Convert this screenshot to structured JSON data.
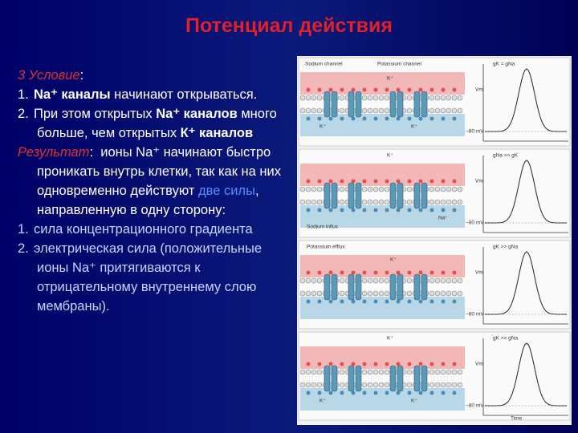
{
  "title": "Потенциал действия",
  "condition": {
    "label": "3 Условие",
    "colon": ":",
    "items": [
      {
        "marker": "1.",
        "bold": "Na⁺ каналы",
        "text": "начинают открываться."
      },
      {
        "marker": "2.",
        "text": "При этом открытых",
        "bold": "Na⁺ каналов",
        "text_2": "много больше, чем открытых",
        "bold_2": "К⁺ каналов"
      }
    ]
  },
  "result": {
    "label": "Результат",
    "colon": ":",
    "text": "ионы Na⁺ начинают быстро проникать внутрь клетки, так как на них одновременно действуют",
    "highlight": "две силы",
    "text_2": ", направленную в одну сторону:",
    "items": [
      {
        "marker": "1.",
        "text": "сила концентрационного градиента"
      },
      {
        "marker": "2.",
        "text": "электрическая сила (положительные ионы Na⁺ притягиваются к отрицательному внутреннему слою мембраны)."
      }
    ]
  },
  "figure": {
    "vm": "Vm",
    "rest": "−80 mV",
    "time": "Time",
    "rows": [
      {
        "conductance": "gK = gNa",
        "labels": [
          "Sodium channel",
          "Potassium channel",
          "K⁺",
          "K⁺",
          "K⁺"
        ]
      },
      {
        "conductance": "gNa >> gK",
        "labels": [
          "K⁺",
          "Sodium influx",
          "Na⁺"
        ]
      },
      {
        "conductance": "gK >> gNa",
        "labels": [
          "Potassium efflux",
          "K⁺"
        ]
      },
      {
        "conductance": "gK >> gNa",
        "labels": [
          "K⁺",
          "K⁺",
          "K⁺"
        ]
      }
    ]
  }
}
